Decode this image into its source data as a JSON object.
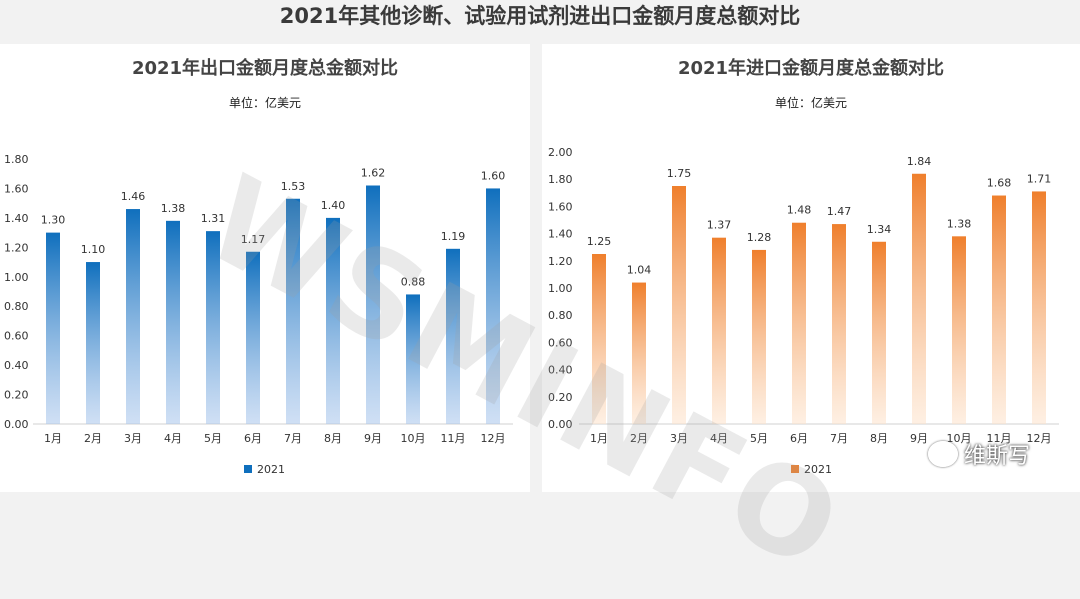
{
  "page": {
    "title": "2021年其他诊断、试验用试剂进出口金额月度总额对比",
    "watermark": "WSMINFO",
    "brand_text": "维斯写"
  },
  "chart_data": [
    {
      "id": "export",
      "type": "bar",
      "title": "2021年出口金额月度总金额对比",
      "subtitle": "单位：亿美元",
      "categories": [
        "1月",
        "2月",
        "3月",
        "4月",
        "5月",
        "6月",
        "7月",
        "8月",
        "9月",
        "10月",
        "11月",
        "12月"
      ],
      "series": [
        {
          "name": "2021",
          "values": [
            1.3,
            1.1,
            1.46,
            1.38,
            1.31,
            1.17,
            1.53,
            1.4,
            1.62,
            0.88,
            1.19,
            1.6
          ],
          "color": "#0f6fbd"
        }
      ],
      "value_labels": [
        "1.30",
        "1.10",
        "1.46",
        "1.38",
        "1.31",
        "1.17",
        "1.53",
        "1.40",
        "1.62",
        "0.88",
        "1.19",
        "1.60"
      ],
      "ylim": [
        0,
        1.8
      ],
      "yticks": [
        "0.00",
        "0.20",
        "0.40",
        "0.60",
        "0.80",
        "1.00",
        "1.20",
        "1.40",
        "1.60",
        "1.80"
      ],
      "grid": false,
      "legend_position": "bottom"
    },
    {
      "id": "import",
      "type": "bar",
      "title": "2021年进口金额月度总金额对比",
      "subtitle": "单位：亿美元",
      "categories": [
        "1月",
        "2月",
        "3月",
        "4月",
        "5月",
        "6月",
        "7月",
        "8月",
        "9月",
        "10月",
        "11月",
        "12月"
      ],
      "series": [
        {
          "name": "2021",
          "values": [
            1.25,
            1.04,
            1.75,
            1.37,
            1.28,
            1.48,
            1.47,
            1.34,
            1.84,
            1.38,
            1.68,
            1.71
          ],
          "color": "#ef7f2c"
        }
      ],
      "value_labels": [
        "1.25",
        "1.04",
        "1.75",
        "1.37",
        "1.28",
        "1.48",
        "1.47",
        "1.34",
        "1.84",
        "1.38",
        "1.68",
        "1.71"
      ],
      "ylim": [
        0,
        2.0
      ],
      "yticks": [
        "0.00",
        "0.20",
        "0.40",
        "0.60",
        "0.80",
        "1.00",
        "1.20",
        "1.40",
        "1.60",
        "1.80",
        "2.00"
      ],
      "grid": false,
      "legend_position": "bottom"
    }
  ]
}
